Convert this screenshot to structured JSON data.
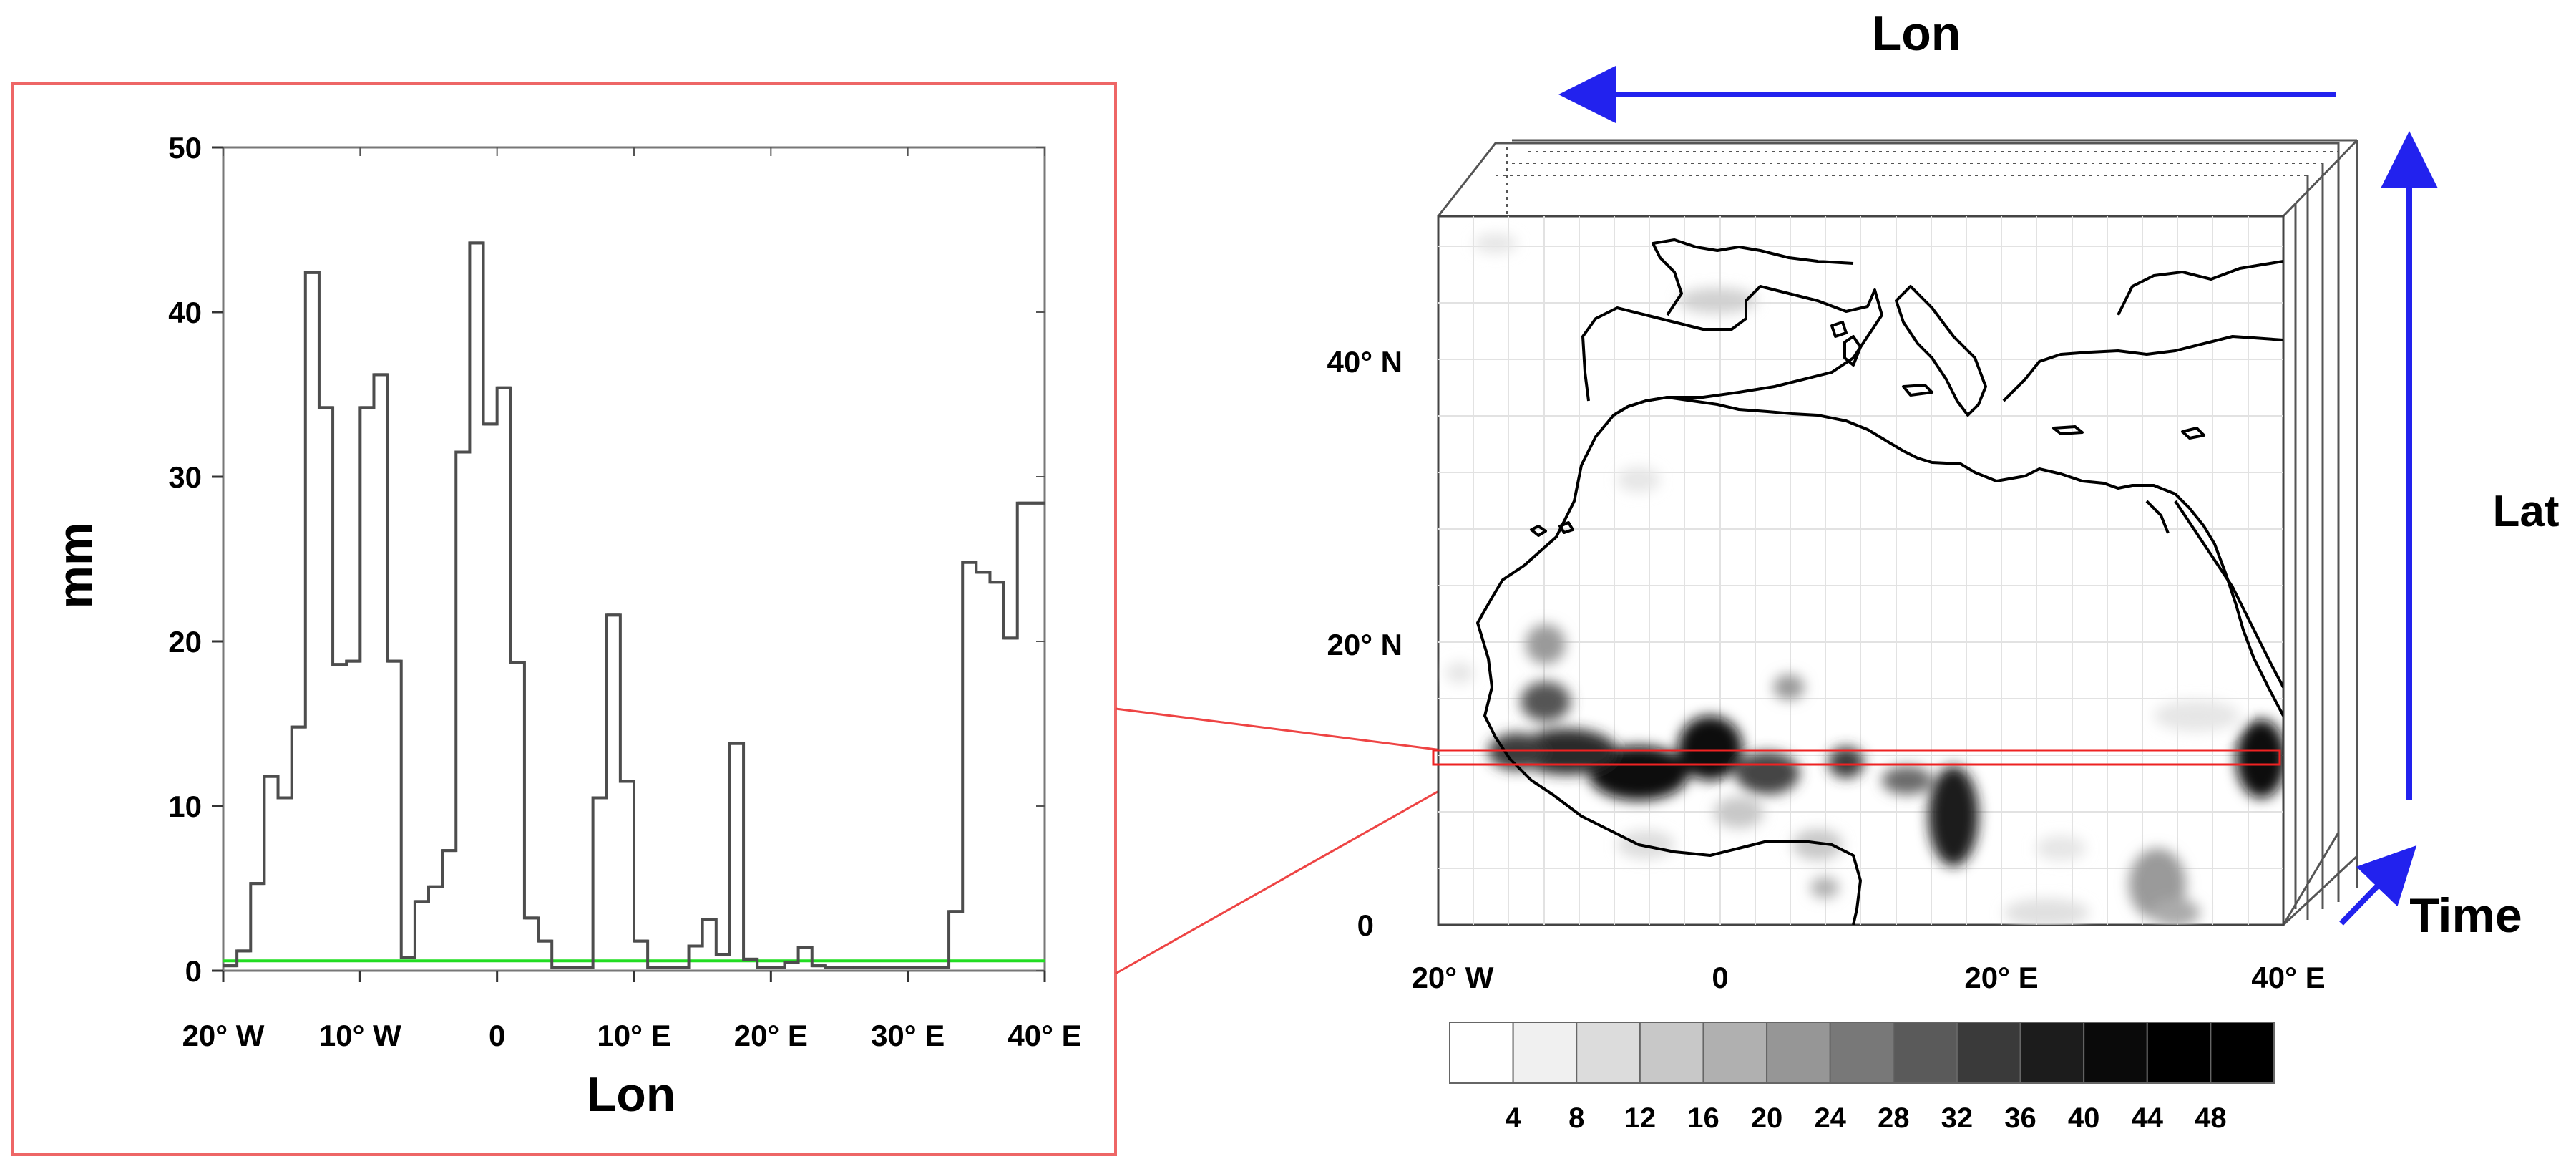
{
  "chart_data": [
    {
      "type": "line",
      "step": true,
      "xlabel": "Lon",
      "ylabel": "mm",
      "xlim": [
        -20,
        40
      ],
      "ylim": [
        0,
        50
      ],
      "x_ticks": [
        -20,
        -10,
        0,
        10,
        20,
        30,
        40
      ],
      "x_tick_labels": [
        "20° W",
        "10° W",
        "0",
        "10° E",
        "20° E",
        "30° E",
        "40° E"
      ],
      "y_ticks": [
        0,
        10,
        20,
        30,
        40,
        50
      ],
      "y_tick_labels": [
        "0",
        "10",
        "20",
        "30",
        "40",
        "50"
      ],
      "grid": false,
      "series": [
        {
          "color": "#4d4d4d",
          "x": [
            -20,
            -19,
            -18,
            -17,
            -16,
            -15,
            -14,
            -13,
            -12,
            -11,
            -10,
            -9,
            -8,
            -7,
            -6,
            -5,
            -4,
            -3,
            -2,
            -1,
            0,
            1,
            2,
            3,
            4,
            5,
            6,
            7,
            8,
            9,
            10,
            11,
            12,
            13,
            14,
            15,
            16,
            17,
            18,
            19,
            20,
            21,
            22,
            23,
            24,
            25,
            26,
            27,
            28,
            29,
            30,
            31,
            32,
            33,
            34,
            35,
            36,
            37,
            38,
            39
          ],
          "values": [
            0.3,
            1.2,
            5.3,
            11.8,
            10.5,
            14.8,
            42.4,
            34.2,
            18.6,
            18.8,
            34.2,
            36.2,
            18.8,
            0.8,
            4.2,
            5.1,
            7.3,
            31.5,
            44.2,
            33.2,
            35.4,
            18.7,
            3.2,
            1.8,
            0.2,
            0.2,
            0.2,
            10.5,
            21.6,
            11.5,
            1.8,
            0.2,
            0.2,
            0.2,
            1.5,
            3.1,
            1.0,
            13.8,
            0.7,
            0.2,
            0.2,
            0.5,
            1.4,
            0.3,
            0.2,
            0.2,
            0.2,
            0.2,
            0.2,
            0.2,
            0.2,
            0.2,
            0.2,
            3.6,
            24.8,
            24.2,
            23.6,
            20.2,
            28.4,
            28.4
          ]
        },
        {
          "color": "#22dd22",
          "x": [
            -20,
            40
          ],
          "values": [
            0.6,
            0.6
          ]
        }
      ]
    },
    {
      "type": "heatmap",
      "xlabel": "Lon",
      "ylabel": "Lat",
      "zlabel": "Time",
      "xlim": [
        -20,
        40
      ],
      "ylim": [
        0,
        50
      ],
      "x_tick_labels": [
        "20° W",
        "0",
        "20° E",
        "40° E"
      ],
      "y_tick_labels": [
        "40° N",
        "20° N",
        "0"
      ],
      "highlight_band_lat": [
        11.5,
        12.7
      ],
      "colorbar": {
        "levels": [
          "4",
          "8",
          "12",
          "16",
          "20",
          "24",
          "28",
          "32",
          "36",
          "40",
          "44",
          "48"
        ],
        "colors": [
          "#ffffff",
          "#f0f0f0",
          "#dcdcdc",
          "#c8c8c8",
          "#b0b0b0",
          "#969696",
          "#787878",
          "#5a5a5a",
          "#3a3a3a",
          "#1c1c1c",
          "#0a0a0a",
          "#000000",
          "#000000"
        ]
      }
    }
  ]
}
